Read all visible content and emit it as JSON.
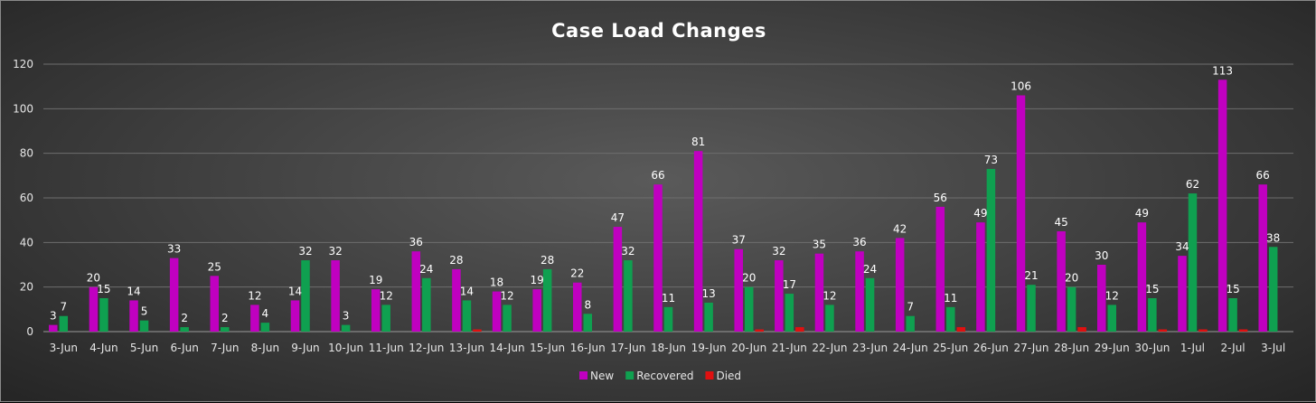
{
  "chart_data": {
    "type": "bar",
    "title": "Case Load Changes",
    "xlabel": "",
    "ylabel": "",
    "ylim": [
      0,
      120
    ],
    "yticks": [
      0,
      20,
      40,
      60,
      80,
      100,
      120
    ],
    "grid": true,
    "legend_position": "bottom",
    "categories": [
      "3-Jun",
      "4-Jun",
      "5-Jun",
      "6-Jun",
      "7-Jun",
      "8-Jun",
      "9-Jun",
      "10-Jun",
      "11-Jun",
      "12-Jun",
      "13-Jun",
      "14-Jun",
      "15-Jun",
      "16-Jun",
      "17-Jun",
      "18-Jun",
      "19-Jun",
      "20-Jun",
      "21-Jun",
      "22-Jun",
      "23-Jun",
      "24-Jun",
      "25-Jun",
      "26-Jun",
      "27-Jun",
      "28-Jun",
      "29-Jun",
      "30-Jun",
      "1-Jul",
      "2-Jul",
      "3-Jul"
    ],
    "series": [
      {
        "name": "New",
        "color": "#c000c0",
        "values": [
          3,
          20,
          14,
          33,
          25,
          12,
          14,
          32,
          19,
          36,
          28,
          18,
          19,
          22,
          47,
          66,
          81,
          37,
          32,
          35,
          36,
          42,
          56,
          49,
          106,
          45,
          30,
          49,
          34,
          113,
          66
        ]
      },
      {
        "name": "Recovered",
        "color": "#0fa050",
        "values": [
          7,
          15,
          5,
          2,
          2,
          4,
          32,
          3,
          12,
          24,
          14,
          12,
          28,
          8,
          32,
          11,
          13,
          20,
          17,
          12,
          24,
          7,
          11,
          73,
          21,
          20,
          12,
          15,
          62,
          15,
          38
        ]
      },
      {
        "name": "Died",
        "color": "#e01010",
        "values": [
          0,
          0,
          0,
          0,
          0,
          0,
          0,
          0,
          0,
          0,
          1,
          0,
          0,
          0,
          0,
          0,
          0,
          1,
          2,
          0,
          0,
          0,
          2,
          0,
          0,
          2,
          0,
          1,
          1,
          1,
          0
        ]
      }
    ]
  }
}
